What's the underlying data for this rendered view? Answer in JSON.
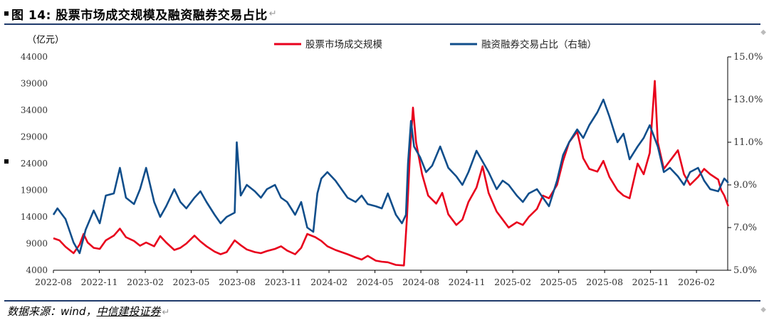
{
  "header": {
    "title": "图 14: 股票市场成交规模及融资融券交易占比",
    "para_mark": "↵"
  },
  "footer": {
    "source_prefix": "数据来源：wind，",
    "source_org": "中信建投证券",
    "para_mark": "↵"
  },
  "chart_data": {
    "type": "line",
    "left_unit_label": "（亿元）",
    "y_left": {
      "min": 4000,
      "max": 44000,
      "ticks": [
        4000,
        9000,
        14000,
        19000,
        24000,
        29000,
        34000,
        39000,
        44000
      ]
    },
    "y_right": {
      "min": 5.0,
      "max": 15.0,
      "ticks": [
        "5.0%",
        "7.0%",
        "9.0%",
        "11.0%",
        "13.0%",
        "15.0%"
      ]
    },
    "x_ticks": [
      "2022-08",
      "2022-11",
      "2023-02",
      "2023-05",
      "2023-08",
      "2023-11",
      "2024-02",
      "2024-05",
      "2024-08",
      "2024-11",
      "2025-02",
      "2025-05",
      "2025-08",
      "2025-11",
      "2026-02"
    ],
    "series": [
      {
        "name": "股票市场成交规模",
        "axis": "left",
        "color": "#e8001c",
        "points": [
          [
            0,
            10000
          ],
          [
            0.3,
            9600
          ],
          [
            0.6,
            8400
          ],
          [
            1.0,
            7200
          ],
          [
            1.3,
            8800
          ],
          [
            1.5,
            10800
          ],
          [
            1.7,
            9200
          ],
          [
            2.0,
            8200
          ],
          [
            2.3,
            8000
          ],
          [
            2.6,
            9600
          ],
          [
            3.0,
            10500
          ],
          [
            3.3,
            11800
          ],
          [
            3.6,
            10200
          ],
          [
            4.0,
            9500
          ],
          [
            4.3,
            8600
          ],
          [
            4.6,
            9200
          ],
          [
            5.0,
            8500
          ],
          [
            5.3,
            10400
          ],
          [
            5.6,
            9200
          ],
          [
            6.0,
            7800
          ],
          [
            6.3,
            8200
          ],
          [
            6.6,
            9000
          ],
          [
            7.0,
            10500
          ],
          [
            7.3,
            9400
          ],
          [
            7.6,
            8500
          ],
          [
            8.0,
            7500
          ],
          [
            8.3,
            7000
          ],
          [
            8.6,
            7400
          ],
          [
            9.0,
            9600
          ],
          [
            9.3,
            8700
          ],
          [
            9.6,
            7900
          ],
          [
            10.0,
            7400
          ],
          [
            10.3,
            7200
          ],
          [
            10.6,
            7600
          ],
          [
            11.0,
            8000
          ],
          [
            11.3,
            8500
          ],
          [
            11.6,
            7700
          ],
          [
            12.0,
            7000
          ],
          [
            12.3,
            8200
          ],
          [
            12.6,
            10800
          ],
          [
            13.0,
            10200
          ],
          [
            13.3,
            9500
          ],
          [
            13.6,
            8500
          ],
          [
            14.0,
            7800
          ],
          [
            14.3,
            7400
          ],
          [
            14.6,
            7000
          ],
          [
            15.0,
            6400
          ],
          [
            15.3,
            6000
          ],
          [
            15.6,
            6700
          ],
          [
            16.0,
            5800
          ],
          [
            16.3,
            5600
          ],
          [
            16.6,
            5500
          ],
          [
            17.0,
            5000
          ],
          [
            17.4,
            4900
          ],
          [
            17.55,
            14000
          ],
          [
            17.7,
            26000
          ],
          [
            17.85,
            34500
          ],
          [
            18.0,
            28000
          ],
          [
            18.3,
            22000
          ],
          [
            18.6,
            18000
          ],
          [
            19.0,
            16500
          ],
          [
            19.3,
            18500
          ],
          [
            19.6,
            14500
          ],
          [
            20.0,
            12500
          ],
          [
            20.3,
            13500
          ],
          [
            20.6,
            16800
          ],
          [
            21.0,
            19500
          ],
          [
            21.3,
            23500
          ],
          [
            21.6,
            18500
          ],
          [
            22.0,
            15000
          ],
          [
            22.3,
            13500
          ],
          [
            22.6,
            12000
          ],
          [
            23.0,
            13000
          ],
          [
            23.3,
            12500
          ],
          [
            23.6,
            14000
          ],
          [
            24.0,
            15500
          ],
          [
            24.3,
            18000
          ],
          [
            24.6,
            17500
          ],
          [
            25.0,
            20000
          ],
          [
            25.3,
            24500
          ],
          [
            25.6,
            28000
          ],
          [
            26.0,
            30000
          ],
          [
            26.3,
            25000
          ],
          [
            26.6,
            23000
          ],
          [
            27.0,
            22500
          ],
          [
            27.3,
            24500
          ],
          [
            27.6,
            21500
          ],
          [
            28.0,
            19000
          ],
          [
            28.3,
            18000
          ],
          [
            28.6,
            17500
          ],
          [
            29.0,
            24000
          ],
          [
            29.3,
            22000
          ],
          [
            29.6,
            26000
          ],
          [
            29.85,
            39500
          ],
          [
            30.0,
            28000
          ],
          [
            30.3,
            23000
          ],
          [
            30.6,
            24500
          ],
          [
            31.0,
            26500
          ],
          [
            31.3,
            22000
          ],
          [
            31.6,
            20000
          ],
          [
            32.0,
            21500
          ],
          [
            32.3,
            23000
          ],
          [
            32.6,
            22000
          ],
          [
            33.0,
            21000
          ],
          [
            33.15,
            19000
          ],
          [
            33.3,
            18000
          ],
          [
            33.5,
            16000
          ]
        ]
      },
      {
        "name": "融资融券交易占比（右轴）",
        "axis": "right",
        "color": "#104e8b",
        "points": [
          [
            0,
            7.6
          ],
          [
            0.2,
            7.9
          ],
          [
            0.6,
            7.4
          ],
          [
            1.0,
            6.3
          ],
          [
            1.3,
            5.8
          ],
          [
            1.6,
            6.9
          ],
          [
            2.0,
            7.8
          ],
          [
            2.3,
            7.2
          ],
          [
            2.6,
            8.5
          ],
          [
            3.0,
            8.6
          ],
          [
            3.3,
            9.8
          ],
          [
            3.6,
            8.4
          ],
          [
            4.0,
            8.1
          ],
          [
            4.3,
            8.8
          ],
          [
            4.6,
            9.8
          ],
          [
            5.0,
            8.2
          ],
          [
            5.3,
            7.5
          ],
          [
            5.6,
            8.0
          ],
          [
            6.0,
            8.8
          ],
          [
            6.3,
            8.2
          ],
          [
            6.6,
            7.9
          ],
          [
            7.0,
            8.4
          ],
          [
            7.3,
            8.7
          ],
          [
            7.6,
            8.2
          ],
          [
            8.0,
            7.6
          ],
          [
            8.3,
            7.2
          ],
          [
            8.6,
            7.5
          ],
          [
            9.0,
            7.7
          ],
          [
            9.1,
            11.0
          ],
          [
            9.3,
            8.5
          ],
          [
            9.6,
            9.0
          ],
          [
            10.0,
            8.7
          ],
          [
            10.3,
            8.4
          ],
          [
            10.6,
            8.8
          ],
          [
            11.0,
            9.0
          ],
          [
            11.3,
            8.4
          ],
          [
            11.6,
            8.2
          ],
          [
            12.0,
            7.6
          ],
          [
            12.3,
            8.2
          ],
          [
            12.6,
            7.0
          ],
          [
            12.9,
            6.8
          ],
          [
            13.1,
            8.6
          ],
          [
            13.3,
            9.3
          ],
          [
            13.6,
            9.6
          ],
          [
            14.0,
            9.2
          ],
          [
            14.3,
            8.8
          ],
          [
            14.6,
            8.4
          ],
          [
            15.0,
            8.2
          ],
          [
            15.3,
            8.5
          ],
          [
            15.6,
            8.1
          ],
          [
            16.0,
            8.0
          ],
          [
            16.3,
            7.9
          ],
          [
            16.6,
            8.6
          ],
          [
            17.0,
            7.6
          ],
          [
            17.3,
            7.2
          ],
          [
            17.5,
            7.6
          ],
          [
            17.6,
            10.0
          ],
          [
            17.75,
            12.0
          ],
          [
            17.9,
            10.8
          ],
          [
            18.2,
            10.3
          ],
          [
            18.5,
            9.6
          ],
          [
            18.8,
            9.9
          ],
          [
            19.2,
            10.8
          ],
          [
            19.6,
            9.8
          ],
          [
            20.0,
            9.4
          ],
          [
            20.3,
            9.0
          ],
          [
            20.6,
            9.6
          ],
          [
            21.0,
            10.6
          ],
          [
            21.3,
            10.1
          ],
          [
            21.6,
            9.6
          ],
          [
            22.0,
            8.8
          ],
          [
            22.3,
            9.2
          ],
          [
            22.6,
            9.0
          ],
          [
            23.0,
            8.5
          ],
          [
            23.3,
            8.2
          ],
          [
            23.6,
            8.6
          ],
          [
            24.0,
            8.8
          ],
          [
            24.3,
            8.4
          ],
          [
            24.6,
            8.0
          ],
          [
            25.0,
            9.2
          ],
          [
            25.3,
            10.4
          ],
          [
            25.6,
            11.0
          ],
          [
            26.0,
            11.6
          ],
          [
            26.3,
            11.2
          ],
          [
            26.6,
            11.8
          ],
          [
            27.0,
            12.4
          ],
          [
            27.3,
            13.0
          ],
          [
            27.6,
            12.2
          ],
          [
            28.0,
            11.0
          ],
          [
            28.3,
            11.4
          ],
          [
            28.6,
            10.2
          ],
          [
            29.0,
            10.8
          ],
          [
            29.3,
            11.2
          ],
          [
            29.6,
            11.8
          ],
          [
            30.0,
            10.8
          ],
          [
            30.3,
            9.6
          ],
          [
            30.6,
            9.8
          ],
          [
            31.0,
            9.4
          ],
          [
            31.3,
            9.0
          ],
          [
            31.6,
            9.6
          ],
          [
            32.0,
            9.8
          ],
          [
            32.3,
            9.2
          ],
          [
            32.6,
            8.8
          ],
          [
            33.0,
            8.7
          ],
          [
            33.3,
            9.3
          ],
          [
            33.5,
            9.1
          ]
        ]
      }
    ]
  }
}
